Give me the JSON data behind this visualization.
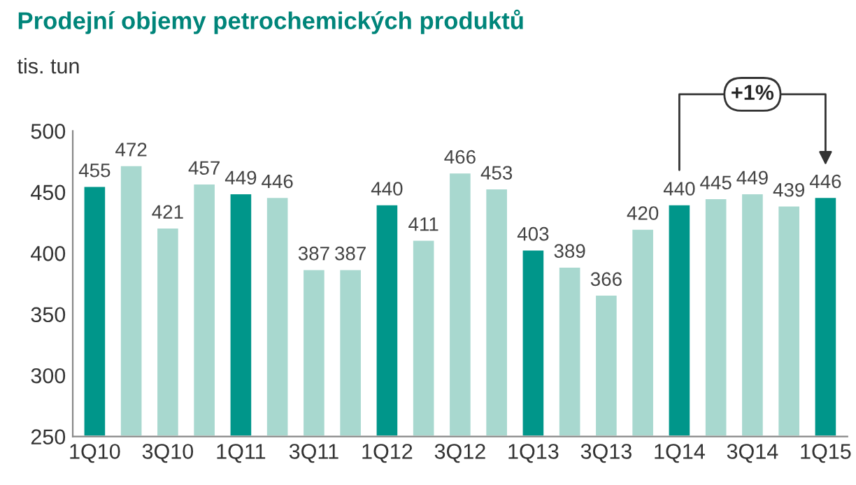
{
  "chart_data": {
    "type": "bar",
    "title": "Prodejní objemy petrochemických produktů",
    "ylabel": "tis. tun",
    "categories": [
      "1Q10",
      null,
      "3Q10",
      null,
      "1Q11",
      null,
      "3Q11",
      null,
      "1Q12",
      null,
      "3Q12",
      null,
      "1Q13",
      null,
      "3Q13",
      null,
      "1Q14",
      null,
      "3Q14",
      null,
      "1Q15"
    ],
    "values": [
      455,
      472,
      421,
      457,
      449,
      446,
      387,
      387,
      440,
      411,
      466,
      453,
      403,
      389,
      366,
      420,
      440,
      445,
      449,
      439,
      446
    ],
    "colors": [
      "#00968a",
      "#a8d8cf",
      "#a8d8cf",
      "#a8d8cf",
      "#00968a",
      "#a8d8cf",
      "#a8d8cf",
      "#a8d8cf",
      "#00968a",
      "#a8d8cf",
      "#a8d8cf",
      "#a8d8cf",
      "#00968a",
      "#a8d8cf",
      "#a8d8cf",
      "#a8d8cf",
      "#00968a",
      "#a8d8cf",
      "#a8d8cf",
      "#a8d8cf",
      "#00968a"
    ],
    "ylim": [
      250,
      500
    ],
    "yticks": [
      250,
      300,
      350,
      400,
      450,
      500
    ],
    "data_labels": true,
    "grid": false,
    "legend": false,
    "annotations": [
      "+1%"
    ]
  }
}
